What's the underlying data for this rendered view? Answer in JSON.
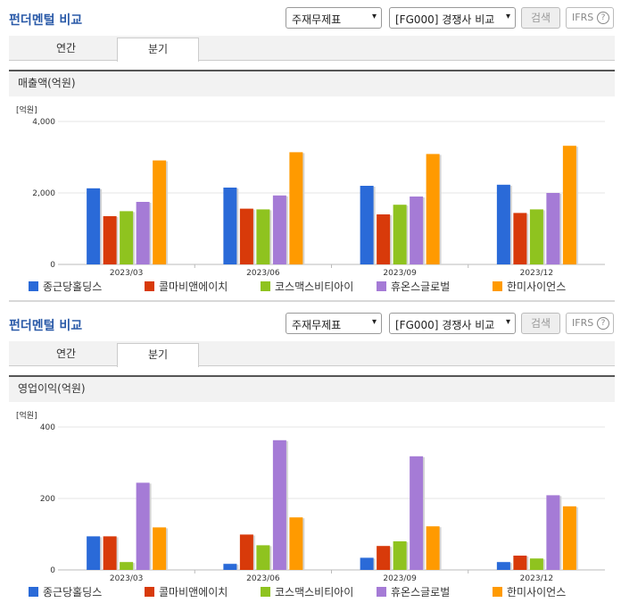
{
  "panels": [
    {
      "title": "펀더멘털 비교",
      "select1": "주재무제표",
      "select2": "[FG000] 경쟁사 비교",
      "search_label": "검색",
      "ifrs_label": "IFRS",
      "help_glyph": "?",
      "tabs": [
        "연간",
        "분기"
      ],
      "active_tab": "분기",
      "section_title": "매출액(억원)"
    },
    {
      "title": "펀더멘털 비교",
      "select1": "주재무제표",
      "select2": "[FG000] 경쟁사 비교",
      "search_label": "검색",
      "ifrs_label": "IFRS",
      "help_glyph": "?",
      "tabs": [
        "연간",
        "분기"
      ],
      "active_tab": "분기",
      "section_title": "영업이익(억원)"
    }
  ],
  "chart_data": [
    {
      "type": "bar",
      "unit_label": "[억원]",
      "categories": [
        "2023/03",
        "2023/06",
        "2023/09",
        "2023/12"
      ],
      "ylim": [
        0,
        4000
      ],
      "yticks": [
        0,
        2000,
        4000
      ],
      "ytick_labels": [
        "0",
        "2,000",
        "4,000"
      ],
      "series": [
        {
          "name": "종근당홀딩스",
          "color": "#2a6ad8",
          "values": [
            2130,
            2150,
            2200,
            2230
          ]
        },
        {
          "name": "콜마비앤에이치",
          "color": "#d83a0a",
          "values": [
            1350,
            1560,
            1400,
            1440
          ]
        },
        {
          "name": "코스맥스비티아이",
          "color": "#8fc31f",
          "values": [
            1490,
            1540,
            1670,
            1540
          ]
        },
        {
          "name": "휴온스글로벌",
          "color": "#a57bd6",
          "values": [
            1750,
            1930,
            1900,
            2000
          ]
        },
        {
          "name": "한미사이언스",
          "color": "#ff9a00",
          "values": [
            2910,
            3140,
            3090,
            3320
          ]
        }
      ],
      "legend_position": "bottom"
    },
    {
      "type": "bar",
      "unit_label": "[억원]",
      "categories": [
        "2023/03",
        "2023/06",
        "2023/09",
        "2023/12"
      ],
      "ylim": [
        0,
        400
      ],
      "yticks": [
        0,
        200,
        400
      ],
      "ytick_labels": [
        "0",
        "200",
        "400"
      ],
      "series": [
        {
          "name": "종근당홀딩스",
          "color": "#2a6ad8",
          "values": [
            94,
            17,
            34,
            22
          ]
        },
        {
          "name": "콜마비앤에이치",
          "color": "#d83a0a",
          "values": [
            94,
            99,
            67,
            40
          ]
        },
        {
          "name": "코스맥스비티아이",
          "color": "#8fc31f",
          "values": [
            22,
            69,
            80,
            32
          ]
        },
        {
          "name": "휴온스글로벌",
          "color": "#a57bd6",
          "values": [
            244,
            363,
            318,
            209
          ]
        },
        {
          "name": "한미사이언스",
          "color": "#ff9a00",
          "values": [
            119,
            147,
            122,
            178
          ]
        }
      ],
      "legend_position": "bottom"
    }
  ]
}
